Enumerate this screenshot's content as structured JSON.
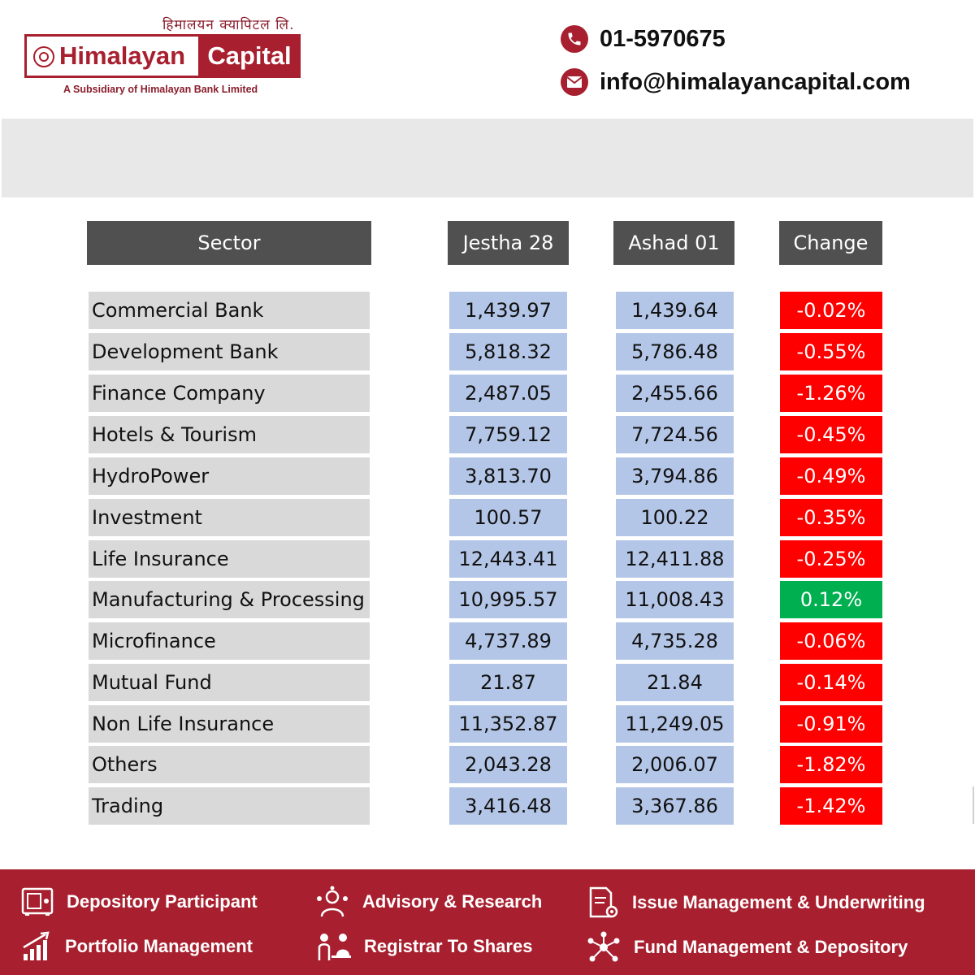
{
  "header": {
    "logo_tagline_np": "हिमालयन क्यापिटल लि.",
    "logo_word1": "Himalayan",
    "logo_word2": "Capital",
    "logo_subtitle": "A Subsidiary of Himalayan Bank Limited",
    "phone": "01-5970675",
    "email": "info@himalayancapital.com"
  },
  "table": {
    "headers": [
      "Sector",
      "Jestha 28",
      "Ashad 01",
      "Change"
    ],
    "rows": [
      {
        "sector": "Commercial Bank",
        "jestha": "1,439.97",
        "ashad": "1,439.64",
        "change": "-0.02%"
      },
      {
        "sector": "Development Bank",
        "jestha": "5,818.32",
        "ashad": "5,786.48",
        "change": "-0.55%"
      },
      {
        "sector": "Finance Company",
        "jestha": "2,487.05",
        "ashad": "2,455.66",
        "change": "-1.26%"
      },
      {
        "sector": "Hotels & Tourism",
        "jestha": "7,759.12",
        "ashad": "7,724.56",
        "change": "-0.45%"
      },
      {
        "sector": "HydroPower",
        "jestha": "3,813.70",
        "ashad": "3,794.86",
        "change": "-0.49%"
      },
      {
        "sector": "Investment",
        "jestha": "100.57",
        "ashad": "100.22",
        "change": "-0.35%"
      },
      {
        "sector": "Life Insurance",
        "jestha": "12,443.41",
        "ashad": "12,411.88",
        "change": "-0.25%"
      },
      {
        "sector": "Manufacturing & Processing",
        "jestha": "10,995.57",
        "ashad": "11,008.43",
        "change": "0.12%"
      },
      {
        "sector": "Microfinance",
        "jestha": "4,737.89",
        "ashad": "4,735.28",
        "change": "-0.06%"
      },
      {
        "sector": "Mutual Fund",
        "jestha": "21.87",
        "ashad": "21.84",
        "change": "-0.14%"
      },
      {
        "sector": "Non Life Insurance",
        "jestha": "11,352.87",
        "ashad": "11,249.05",
        "change": "-0.91%"
      },
      {
        "sector": "Others",
        "jestha": "2,043.28",
        "ashad": "2,006.07",
        "change": "-1.82%"
      },
      {
        "sector": "Trading",
        "jestha": "3,416.48",
        "ashad": "3,367.86",
        "change": "-1.42%"
      }
    ]
  },
  "colors": {
    "brand": "#a8202f",
    "negative": "#ff0000",
    "positive": "#00b050"
  },
  "footer": {
    "services": [
      {
        "label": "Depository Participant",
        "icon": "safe-icon"
      },
      {
        "label": "Advisory & Research",
        "icon": "advisor-icon"
      },
      {
        "label": "Issue Management & Underwriting",
        "icon": "document-gear-icon"
      },
      {
        "label": "Portfolio  Management",
        "icon": "growth-chart-icon"
      },
      {
        "label": "Registrar To Shares",
        "icon": "registrar-icon"
      },
      {
        "label": "Fund Management & Depository",
        "icon": "network-icon"
      }
    ]
  }
}
